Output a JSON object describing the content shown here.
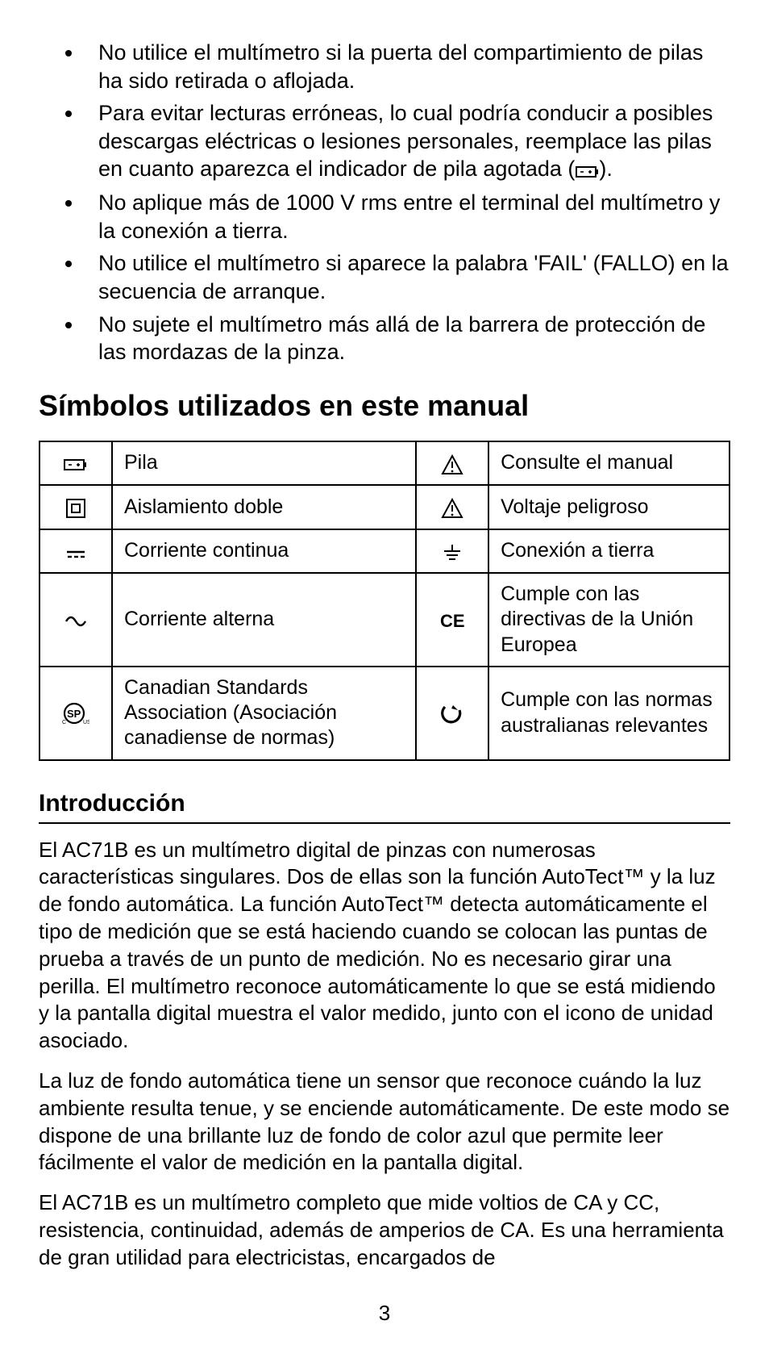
{
  "bullets": [
    "No utilice el multímetro si la puerta del compartimiento de pilas ha sido retirada o aflojada.",
    "Para evitar lecturas erróneas, lo cual podría conducir a posibles descargas eléctricas o lesiones personales, reemplace las pilas en cuanto aparezca el indicador de pila agotada (|BATT|).",
    "No aplique más de 1000 V rms entre el terminal del multímetro y la conexión a tierra.",
    "No utilice el multímetro si aparece la palabra 'FAIL' (FALLO) en la secuencia de arranque.",
    "No sujete el multímetro más allá de la barrera de protección de las mordazas de la pinza."
  ],
  "section_title": "Símbolos utilizados en este manual",
  "symbols_table": {
    "rows": [
      {
        "left_icon": "battery",
        "left_label": "Pila",
        "right_icon": "warn",
        "right_label": "Consulte el manual"
      },
      {
        "left_icon": "dblins",
        "left_label": "Aislamiento doble",
        "right_icon": "warn2",
        "right_label": "Voltaje peligroso"
      },
      {
        "left_icon": "dc",
        "left_label": "Corriente continua",
        "right_icon": "ground",
        "right_label": "Conexión a tierra"
      },
      {
        "left_icon": "ac",
        "left_label": "Corriente alterna",
        "right_icon": "ce",
        "right_label": "Cumple con las directivas de la Unión Europea"
      },
      {
        "left_icon": "csa",
        "left_label": "Canadian Standards Association (Asociación canadiense de normas)",
        "right_icon": "ctick",
        "right_label": "Cumple con las normas australianas relevantes"
      }
    ]
  },
  "intro_title": "Introducción",
  "intro_paragraphs": [
    "El AC71B es un multímetro digital de pinzas con numerosas características singulares. Dos de ellas son la función AutoTect™ y la luz de fondo automática. La función AutoTect™ detecta automáticamente el tipo de medición que se está haciendo cuando se colocan las puntas de prueba a través de un punto de medición. No es necesario girar una perilla. El multímetro reconoce automáticamente lo que se está midiendo y la pantalla digital muestra el valor medido, junto con el icono de unidad asociado.",
    "La luz de fondo automática tiene un sensor que reconoce cuándo la luz ambiente resulta tenue, y se enciende automáticamente. De este modo se dispone de una brillante luz de fondo de color azul que permite leer fácilmente el valor de medición en la pantalla digital.",
    "El AC71B es un multímetro completo que mide voltios de CA y CC, resistencia, continuidad, además de amperios de CA. Es una herramienta de gran utilidad para electricistas, encargados de"
  ],
  "page_number": "3",
  "colors": {
    "text": "#000000",
    "background": "#ffffff",
    "border": "#000000"
  },
  "fontsizes": {
    "bullet": 27,
    "h1": 36,
    "h2": 30,
    "table": 25,
    "body": 26,
    "pagenum": 26
  }
}
